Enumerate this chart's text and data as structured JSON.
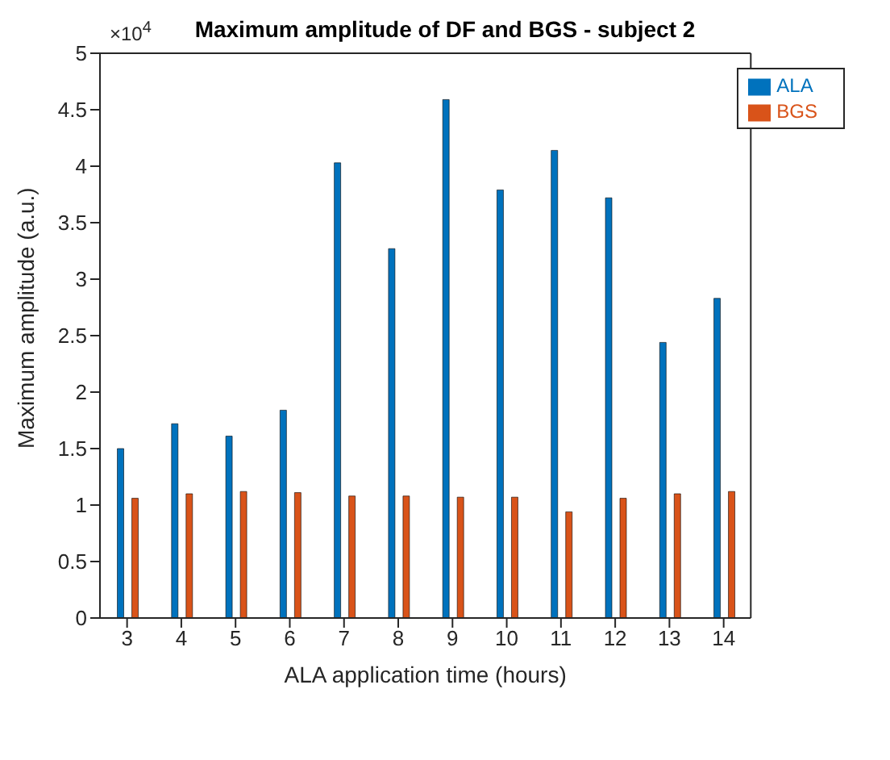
{
  "chart_data": {
    "type": "bar",
    "title": "Maximum amplitude of DF and BGS - subject 2",
    "xlabel": "ALA application time (hours)",
    "ylabel": "Maximum amplitude (a.u.)",
    "categories": [
      "3",
      "4",
      "5",
      "6",
      "7",
      "8",
      "9",
      "10",
      "11",
      "12",
      "13",
      "14"
    ],
    "series": [
      {
        "name": "ALA",
        "color": "#0072bd",
        "values": [
          1.5,
          1.72,
          1.61,
          1.84,
          4.03,
          3.27,
          4.59,
          3.79,
          4.14,
          3.72,
          2.44,
          2.83
        ]
      },
      {
        "name": "BGS",
        "color": "#d95319",
        "values": [
          1.06,
          1.1,
          1.12,
          1.11,
          1.08,
          1.08,
          1.07,
          1.07,
          0.94,
          1.06,
          1.1,
          1.12
        ]
      }
    ],
    "ylim": [
      0,
      5
    ],
    "yticks": [
      0,
      0.5,
      1,
      1.5,
      2,
      2.5,
      3,
      3.5,
      4,
      4.5,
      5
    ],
    "annotations": [
      "×10$^{4}$"
    ],
    "grid": false,
    "legend": "top right"
  }
}
